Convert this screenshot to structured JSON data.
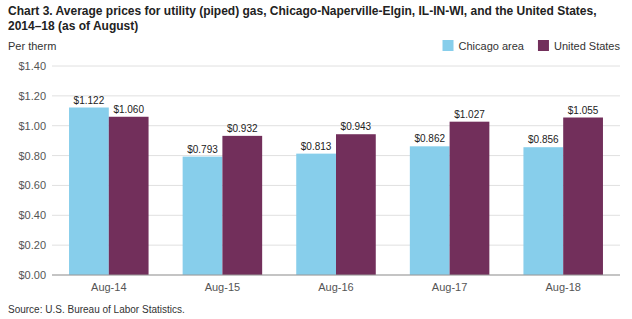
{
  "chart_data": {
    "type": "bar",
    "title": "Chart 3. Average prices for utility (piped) gas, Chicago-Naperville-Elgin, IL-IN-WI, and the United States, 2014–18 (as of August)",
    "y_label": "Per therm",
    "source": "Source: U.S. Bureau of Labor Statistics.",
    "categories": [
      "Aug-14",
      "Aug-15",
      "Aug-16",
      "Aug-17",
      "Aug-18"
    ],
    "series": [
      {
        "name": "Chicago area",
        "color": "#87CEEB",
        "values": [
          1.122,
          0.793,
          0.813,
          0.862,
          0.856
        ],
        "value_labels": [
          "$1.122",
          "$0.793",
          "$0.813",
          "$0.862",
          "$0.856"
        ]
      },
      {
        "name": "United States",
        "color": "#722F5B",
        "values": [
          1.06,
          0.932,
          0.943,
          1.027,
          1.055
        ],
        "value_labels": [
          "$1.060",
          "$0.932",
          "$0.943",
          "$1.027",
          "$1.055"
        ]
      }
    ],
    "ylim": [
      0.0,
      1.4
    ],
    "yticks": [
      {
        "value": 0.0,
        "label": "$0.00"
      },
      {
        "value": 0.2,
        "label": "$0.20"
      },
      {
        "value": 0.4,
        "label": "$0.40"
      },
      {
        "value": 0.6,
        "label": "$0.60"
      },
      {
        "value": 0.8,
        "label": "$0.80"
      },
      {
        "value": 1.0,
        "label": "$1.00"
      },
      {
        "value": 1.2,
        "label": "$1.20"
      },
      {
        "value": 1.4,
        "label": "$1.40"
      }
    ],
    "grid": true,
    "legend": "top-right",
    "data_labels": true
  }
}
